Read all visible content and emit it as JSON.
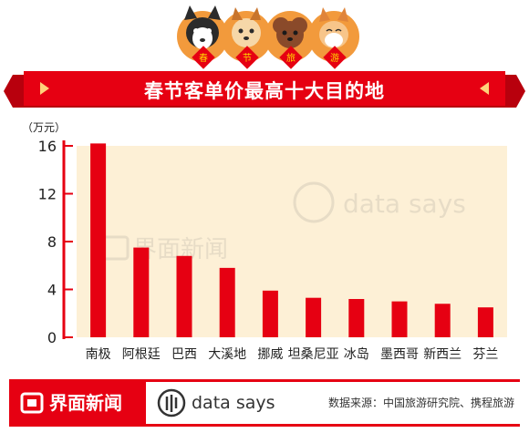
{
  "header": {
    "badges": [
      "春",
      "节",
      "旅",
      "游"
    ]
  },
  "chart_data": {
    "type": "bar",
    "title": "春节客单价最高十大目的地",
    "ylabel": "（万元）",
    "xlabel": "",
    "ylim": [
      0,
      16
    ],
    "yticks": [
      0,
      4,
      8,
      12,
      16
    ],
    "grid": false,
    "categories": [
      "南极",
      "阿根廷",
      "巴西",
      "大溪地",
      "挪威",
      "坦桑尼亚",
      "冰岛",
      "墨西哥",
      "新西兰",
      "芬兰"
    ],
    "values": [
      16.2,
      7.5,
      6.8,
      5.8,
      3.9,
      3.3,
      3.2,
      3.0,
      2.8,
      2.5
    ],
    "bar_color": "#e60012",
    "plot_background": "#fdf0d6"
  },
  "watermark": {
    "logo_text": "界面新闻",
    "ds_text": "data says"
  },
  "footer": {
    "logo_text": "界面新闻",
    "ds_text": "data says",
    "source": "数据来源：中国旅游研究院、携程旅游"
  },
  "colors": {
    "accent": "#e60012",
    "banner_dark": "#b8000d"
  }
}
